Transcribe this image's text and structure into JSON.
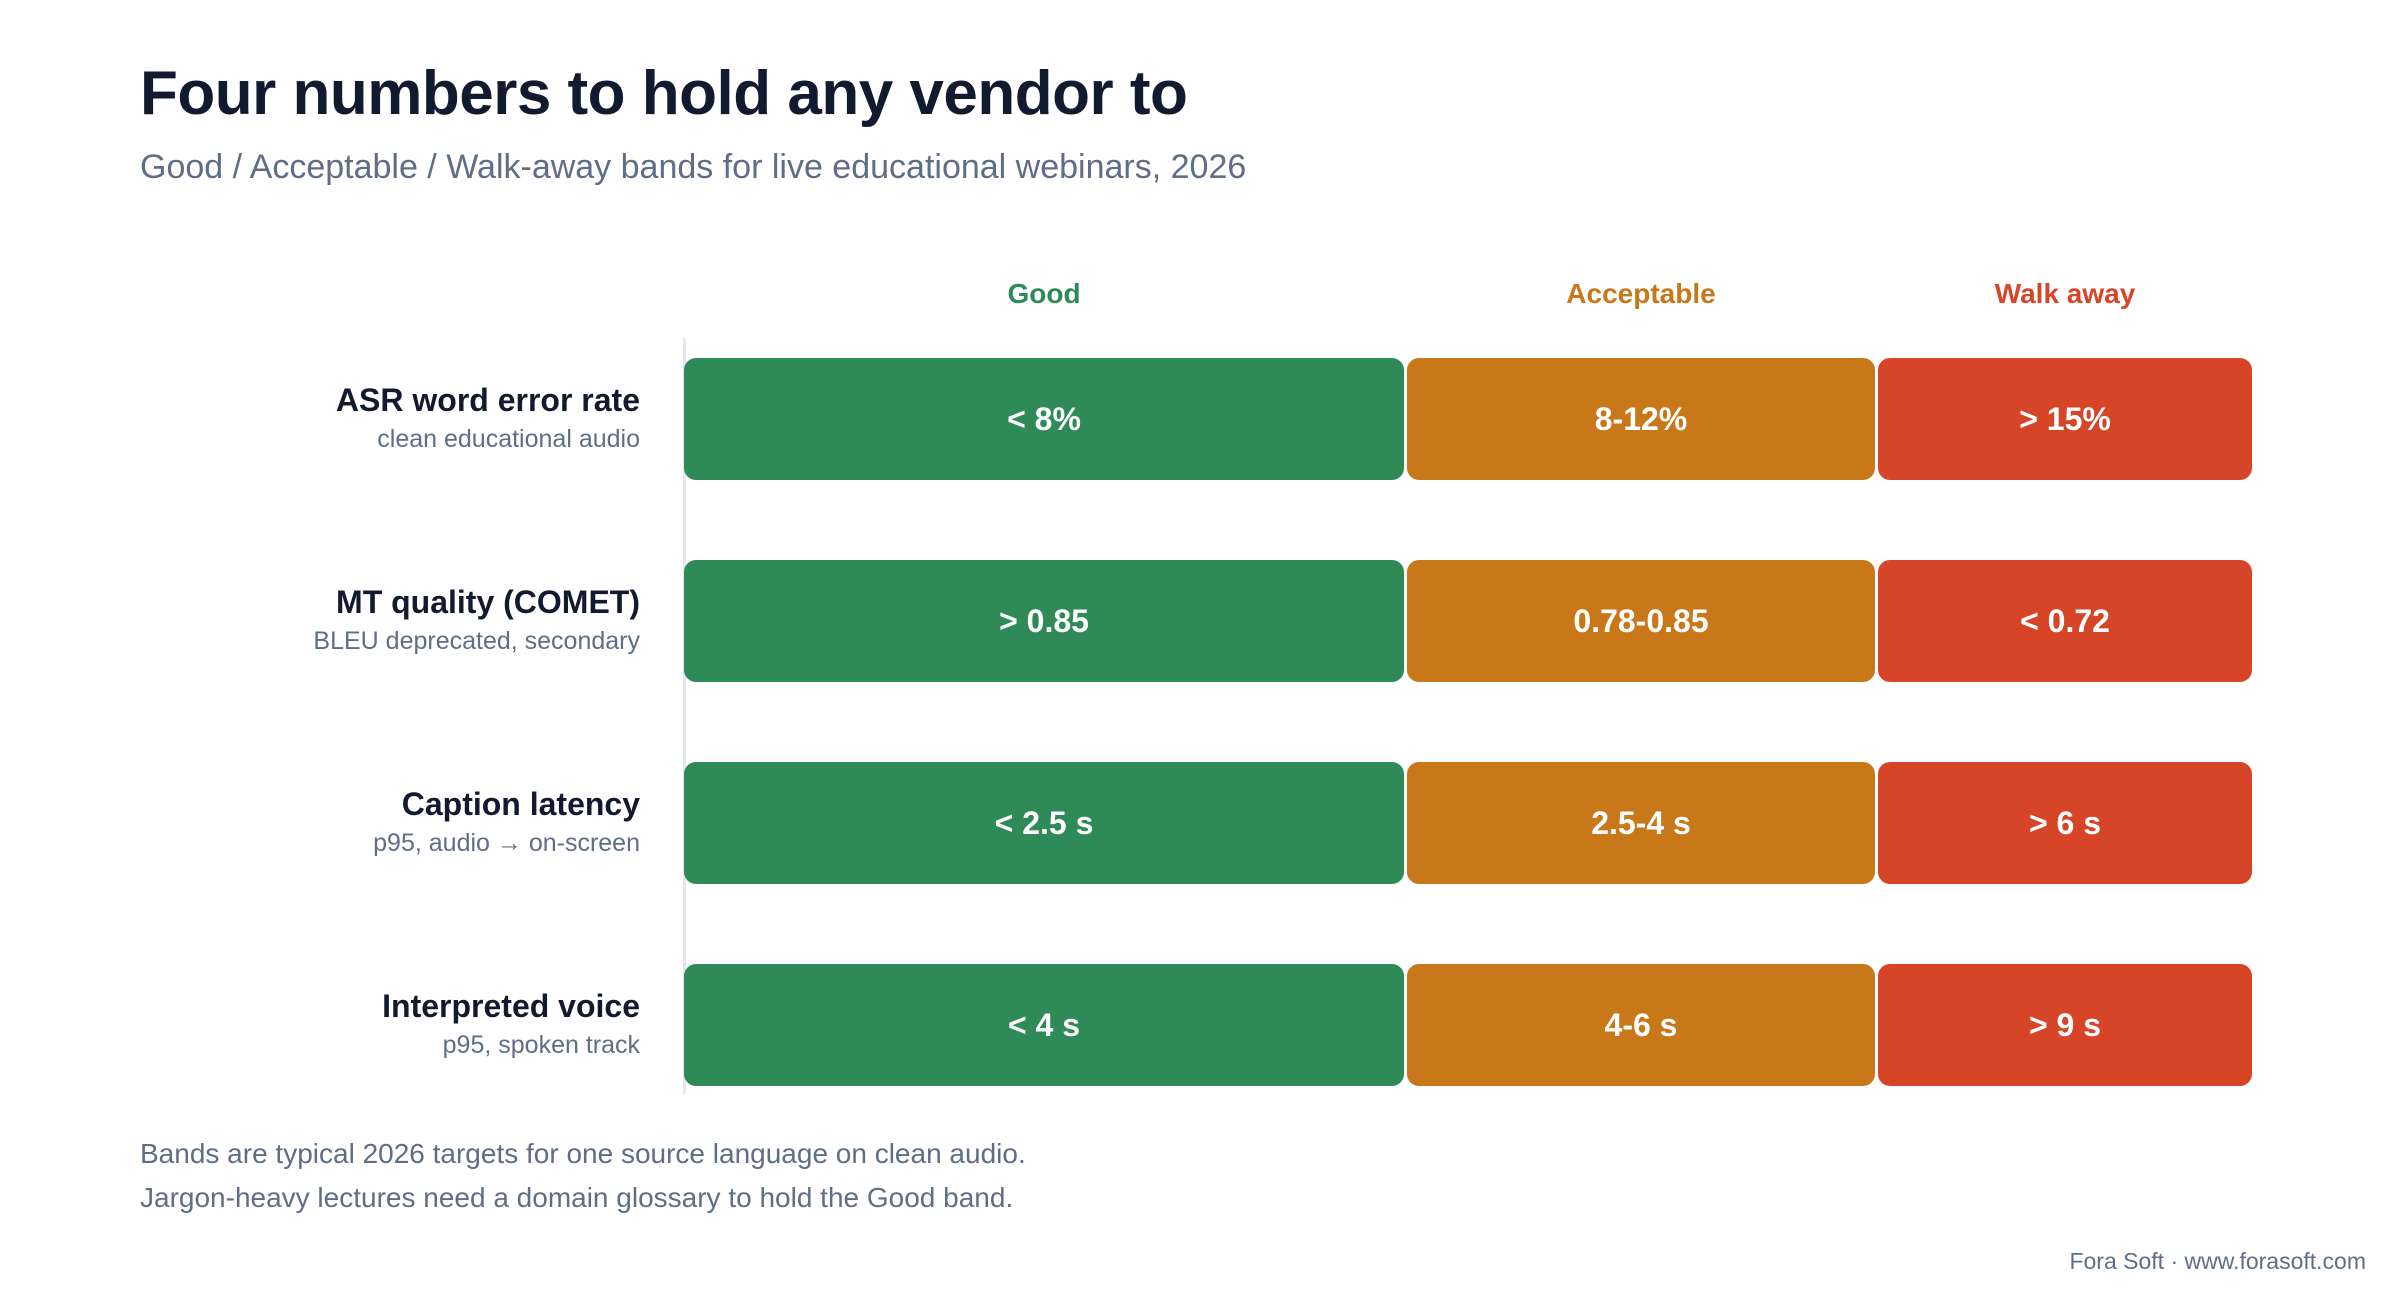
{
  "title": "Four numbers to hold any vendor to",
  "subtitle": "Good / Acceptable / Walk-away bands for live educational webinars, 2026",
  "columns": {
    "good": "Good",
    "acceptable": "Acceptable",
    "walk_away": "Walk away"
  },
  "colors": {
    "good": "#2e8b57",
    "acceptable": "#c87819",
    "walk_away": "#d64527"
  },
  "rows": [
    {
      "name": "ASR word error rate",
      "sub": "clean educational audio",
      "good": "< 8%",
      "acceptable": "8-12%",
      "walk_away": "> 15%"
    },
    {
      "name": "MT quality (COMET)",
      "sub": "BLEU deprecated, secondary",
      "good": "> 0.85",
      "acceptable": "0.78-0.85",
      "walk_away": "< 0.72"
    },
    {
      "name": "Caption latency",
      "sub": "p95, audio → on-screen",
      "good": "< 2.5 s",
      "acceptable": "2.5-4 s",
      "walk_away": "> 6 s"
    },
    {
      "name": "Interpreted voice",
      "sub": "p95, spoken track",
      "good": "< 4 s",
      "acceptable": "4-6 s",
      "walk_away": "> 9 s"
    }
  ],
  "footnote": {
    "line1": "Bands are typical 2026 targets for one source language on clean audio.",
    "line2": "Jargon-heavy lectures need a domain glossary to hold the Good band."
  },
  "credit": "Fora Soft · www.forasoft.com"
}
